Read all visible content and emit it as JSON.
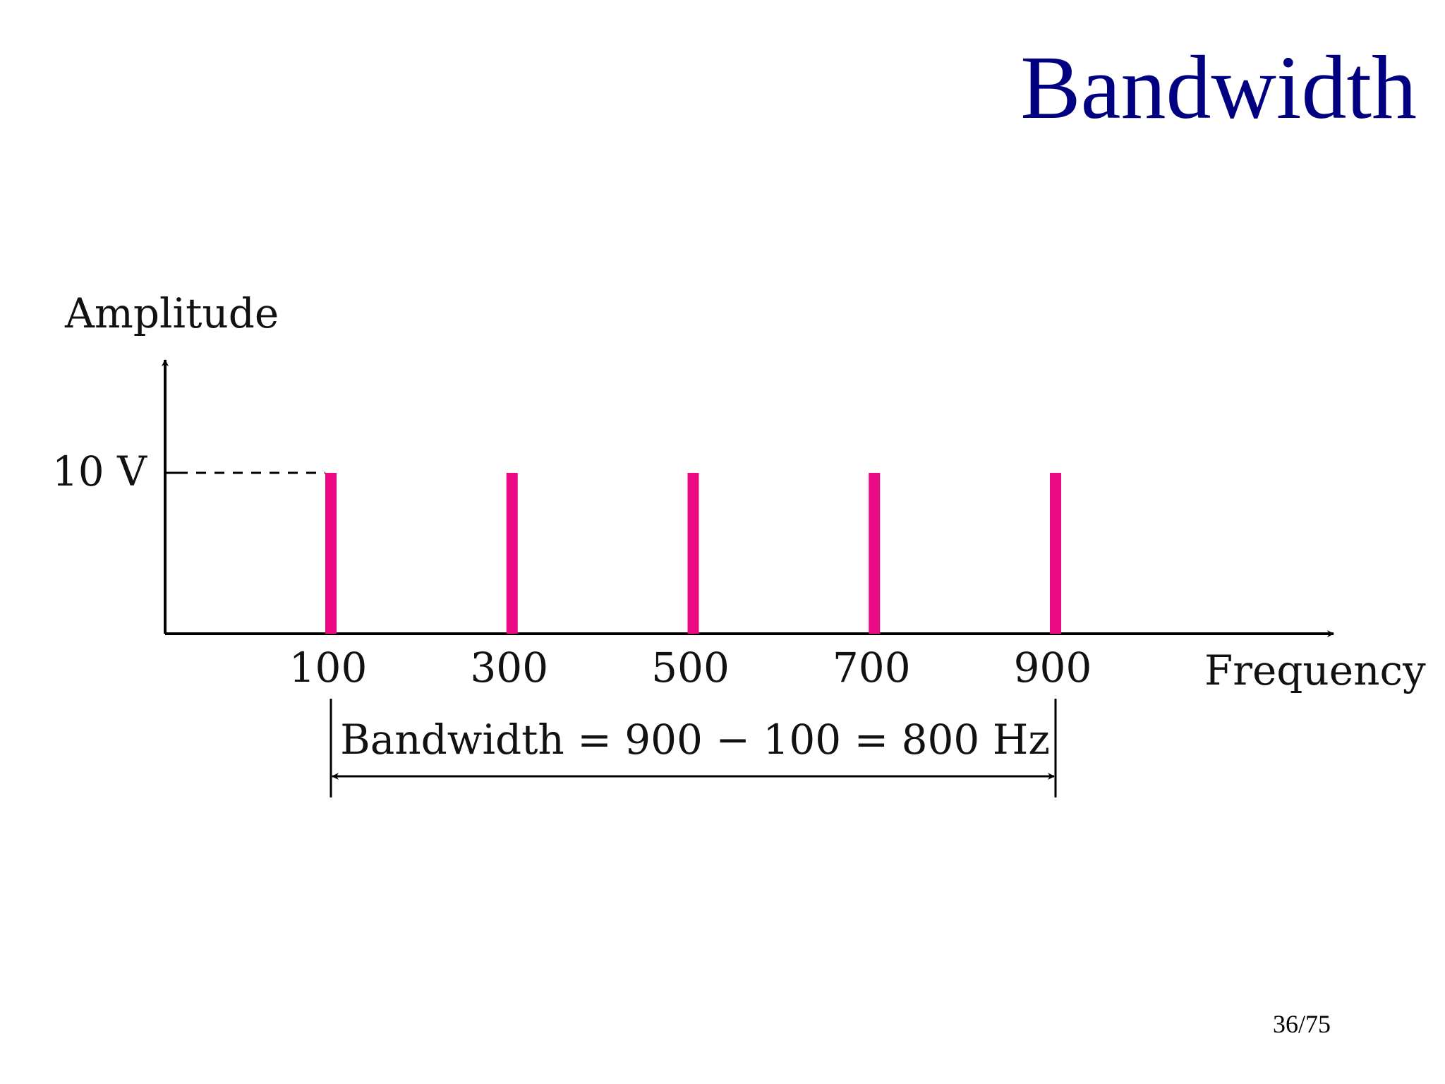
{
  "slide": {
    "title": "Bandwidth",
    "page_number": "36/75"
  },
  "colors": {
    "title": "#000080",
    "bars": "#EB0A83",
    "axes": "#000000"
  },
  "chart_data": {
    "type": "bar",
    "title": "",
    "xlabel": "Frequency",
    "ylabel": "Amplitude",
    "x": [
      100,
      300,
      500,
      700,
      900
    ],
    "tick_labels": [
      "100",
      "300",
      "500",
      "700",
      "900"
    ],
    "values": [
      10,
      10,
      10,
      10,
      10
    ],
    "y_tick_label": "10 V",
    "y_tick_value": 10,
    "ylim": [
      0,
      10
    ],
    "xlim": [
      0,
      1200
    ],
    "grid": false,
    "annotation": {
      "text": "Bandwidth = 900 − 100 = 800 Hz",
      "from": 100,
      "to": 900
    }
  }
}
